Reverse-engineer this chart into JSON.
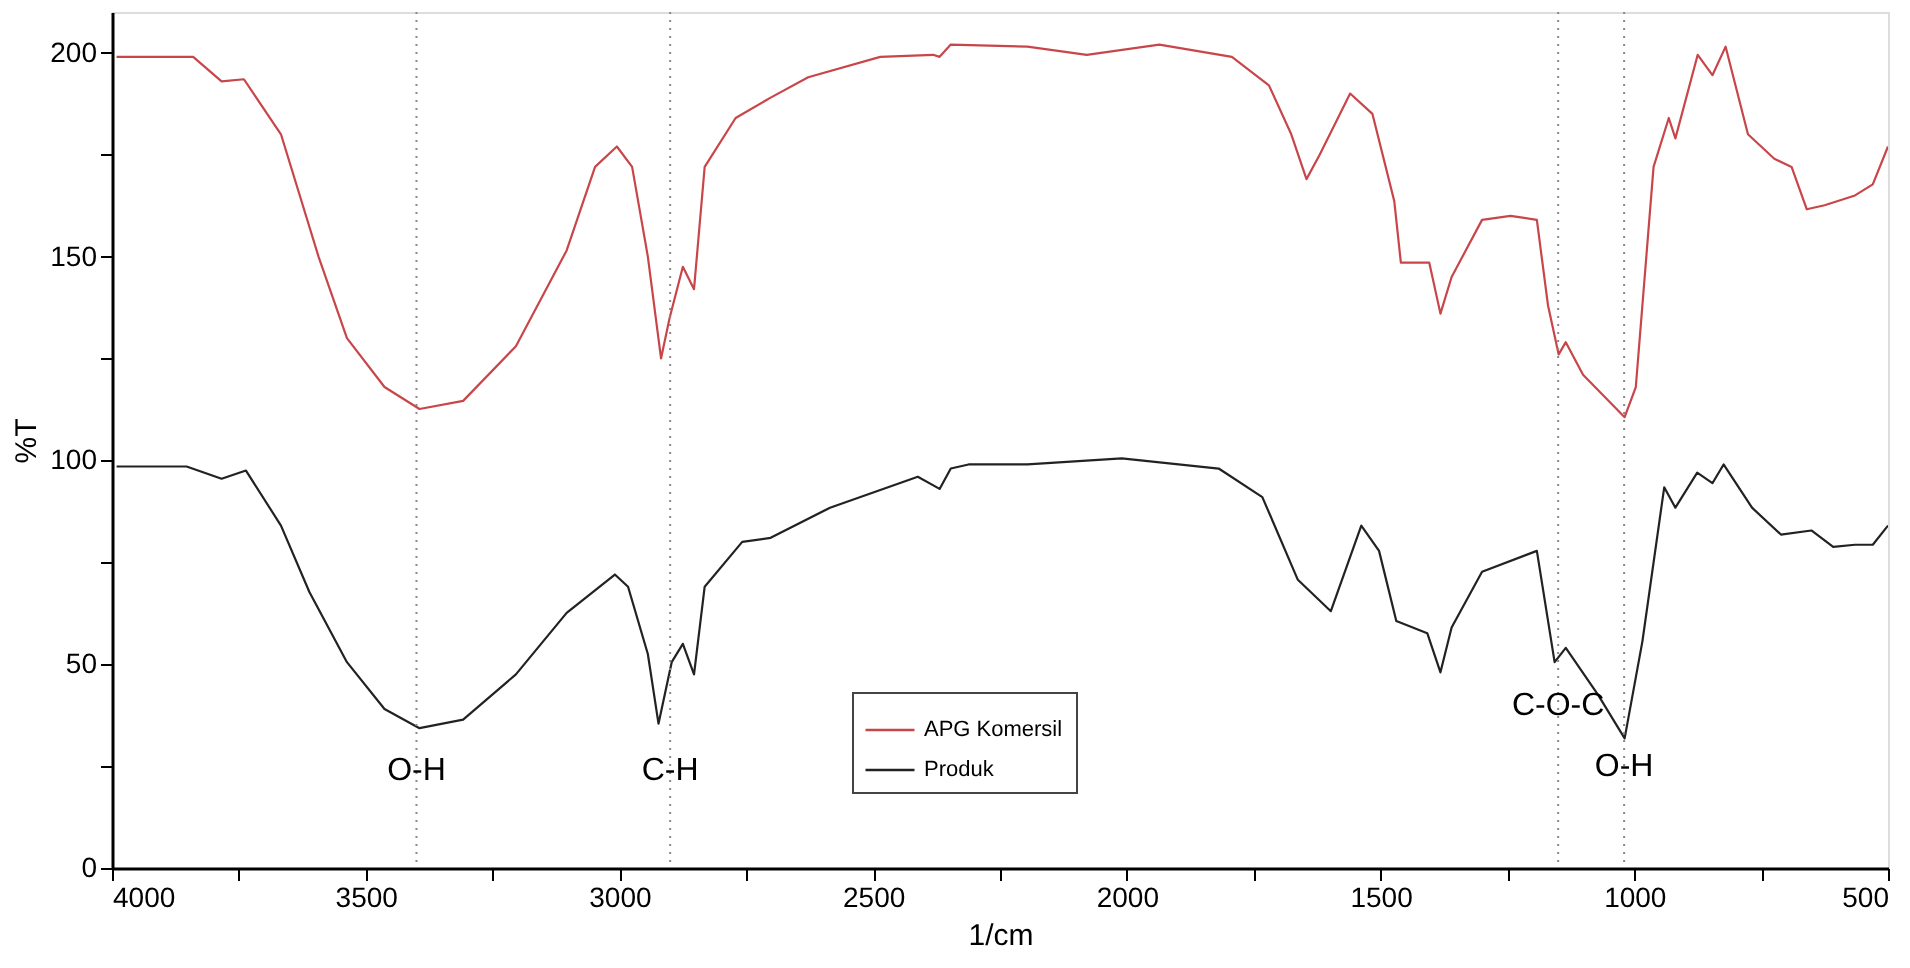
{
  "chart_data": {
    "type": "line",
    "xlabel": "1/cm",
    "ylabel": "%T",
    "x": [
      3991,
      3840,
      3784,
      3740,
      3667,
      3593,
      3537,
      3463,
      3394,
      3308,
      3204,
      3104,
      3048,
      3005,
      2975,
      2944,
      2918,
      2901,
      2875,
      2853,
      2832,
      2771,
      2702,
      2628,
      2486,
      2382,
      2369,
      2347,
      2196,
      2079,
      1936,
      1793,
      1720,
      1676,
      1646,
      1620,
      1560,
      1516,
      1473,
      1460,
      1404,
      1382,
      1360,
      1300,
      1244,
      1192,
      1170,
      1149,
      1135,
      1101,
      1019,
      997,
      962,
      932,
      919,
      875,
      846,
      820,
      776,
      724,
      690,
      660,
      625,
      565,
      530,
      500
    ],
    "series": [
      {
        "name": "APG Komersil",
        "color": "#c8464a",
        "values": [
          199,
          199,
          193,
          193.5,
          180,
          150,
          130,
          118,
          112.6,
          114.6,
          128,
          151.5,
          172,
          177,
          172,
          150,
          125,
          135,
          147.5,
          142,
          172,
          184,
          189,
          194,
          199,
          199.5,
          199,
          202,
          201.5,
          199.5,
          202,
          199,
          192,
          180,
          169,
          175,
          190,
          185,
          163.6,
          148.5,
          148.5,
          136,
          145,
          159,
          160,
          159,
          138,
          126,
          129,
          121,
          110.6,
          118,
          172,
          184,
          179,
          199.5,
          194.5,
          201.5,
          180,
          174,
          172,
          161.6,
          162.6,
          165,
          167.7,
          177
        ]
      },
      {
        "name": "Produk",
        "color": "#222222",
        "x": [
          3991,
          3853,
          3784,
          3736,
          3667,
          3611,
          3537,
          3463,
          3394,
          3308,
          3204,
          3104,
          3009,
          2983,
          2944,
          2923,
          2897,
          2875,
          2853,
          2832,
          2758,
          2702,
          2585,
          2412,
          2369,
          2347,
          2312,
          2196,
          2010,
          1819,
          1733,
          1663,
          1598,
          1538,
          1503,
          1469,
          1408,
          1382,
          1360,
          1300,
          1192,
          1157,
          1135,
          1071,
          1019,
          984,
          941,
          919,
          876,
          846,
          824,
          768,
          711,
          651,
          608,
          565,
          530,
          500
        ],
        "values": [
          98.5,
          98.5,
          95.5,
          97.5,
          84,
          67.7,
          50.5,
          39,
          34.3,
          36.4,
          47.5,
          62.6,
          72,
          69,
          52.5,
          35.4,
          50.5,
          55,
          47.5,
          69,
          80,
          81,
          88.4,
          96,
          93,
          98,
          99,
          99,
          100.5,
          98,
          91,
          70.7,
          63,
          84,
          77.8,
          60.6,
          57.6,
          48,
          59,
          72.7,
          77.8,
          50.5,
          54,
          42.4,
          31.8,
          55.6,
          93.4,
          88.4,
          97,
          94.4,
          99,
          88.4,
          81.8,
          82.8,
          78.8,
          79.3,
          79.3,
          84
        ]
      }
    ],
    "xlim": [
      4000,
      500
    ],
    "xticks": [
      4000,
      {
        "value": 3750,
        "label": null
      },
      3500,
      {
        "value": 3250,
        "label": null
      },
      3000,
      {
        "value": 2750,
        "label": null
      },
      2500,
      {
        "value": 2250,
        "label": null
      },
      2000,
      {
        "value": 1750,
        "label": null
      },
      1500,
      {
        "value": 1250,
        "label": null
      },
      1000,
      {
        "value": 750,
        "label": null
      },
      500
    ],
    "ylim": [
      0,
      210
    ],
    "yticks": [
      0,
      {
        "value": 25,
        "label": null
      },
      50,
      {
        "value": 75,
        "label": null
      },
      100,
      {
        "value": 125,
        "label": null
      },
      150,
      {
        "value": 175,
        "label": null
      },
      200
    ],
    "ref_lines": [
      {
        "axis": "x",
        "value": 3400,
        "color": "#888888",
        "line_style": "dotted"
      },
      {
        "axis": "x",
        "value": 2900,
        "color": "#888888",
        "line_style": "dotted"
      },
      {
        "axis": "x",
        "value": 1150,
        "color": "#888888",
        "line_style": "dotted"
      },
      {
        "axis": "x",
        "value": 1020,
        "color": "#888888",
        "line_style": "dotted"
      }
    ],
    "annotations": [
      {
        "text": "O-H",
        "x": 3400,
        "y": 24
      },
      {
        "text": "C-H",
        "x": 2900,
        "y": 24
      },
      {
        "text": "C-O-C",
        "x": 1150,
        "y": 40
      },
      {
        "text": "O-H",
        "x": 1020,
        "y": 25
      }
    ],
    "legend": "bottom",
    "grid": false,
    "marker": "none",
    "line_style": "solid"
  }
}
